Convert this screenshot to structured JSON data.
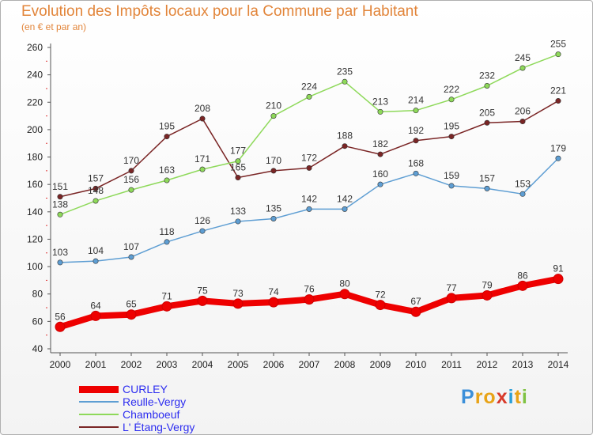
{
  "title": "Evolution des Impôts locaux pour la Commune par Habitant",
  "subtitle": "(en € et par an)",
  "logo": {
    "text": "Proxiti",
    "letters": [
      {
        "ch": "P",
        "color": "#3b8fd9"
      },
      {
        "ch": "r",
        "color": "#e8a317"
      },
      {
        "ch": "o",
        "color": "#e8a317"
      },
      {
        "ch": "x",
        "color": "#d83a2a"
      },
      {
        "ch": "i",
        "color": "#2a9fd8"
      },
      {
        "ch": "t",
        "color": "#e8a317"
      },
      {
        "ch": "i",
        "color": "#7fc242"
      }
    ]
  },
  "chart_data": {
    "type": "line",
    "title": "Evolution des Impôts locaux pour la Commune par Habitant",
    "ylabel": "(en € et par an)",
    "xlabel": "",
    "ylim": [
      40,
      260
    ],
    "yticks": [
      40,
      60,
      80,
      100,
      120,
      140,
      160,
      180,
      200,
      220,
      240,
      260
    ],
    "categories": [
      "2000",
      "2001",
      "2002",
      "2003",
      "2004",
      "2005",
      "2006",
      "2007",
      "2008",
      "2009",
      "2010",
      "2011",
      "2012",
      "2013",
      "2014"
    ],
    "grid": false,
    "series": [
      {
        "name": "L' Étang-Vergy",
        "color": "#7a2525",
        "values": [
          151,
          157,
          170,
          195,
          208,
          165,
          170,
          172,
          188,
          182,
          192,
          195,
          205,
          206,
          221
        ]
      },
      {
        "name": "Chamboeuf",
        "color": "#8ed95a",
        "values": [
          138,
          148,
          156,
          163,
          171,
          177,
          210,
          224,
          235,
          213,
          214,
          222,
          232,
          245,
          255
        ]
      },
      {
        "name": "Reulle-Vergy",
        "color": "#5e9ed3",
        "values": [
          103,
          104,
          107,
          118,
          126,
          133,
          135,
          142,
          142,
          160,
          168,
          159,
          157,
          153,
          179
        ]
      },
      {
        "name": "CURLEY",
        "color": "#ee0000",
        "values": [
          56,
          64,
          65,
          71,
          75,
          73,
          74,
          76,
          80,
          72,
          67,
          77,
          79,
          86,
          91
        ]
      }
    ],
    "legend": [
      "CURLEY",
      "Reulle-Vergy",
      "Chamboeuf",
      "L' Étang-Vergy"
    ]
  }
}
